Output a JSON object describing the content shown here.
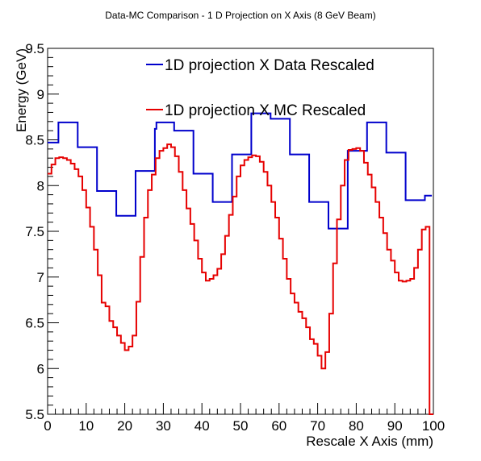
{
  "chart_data": {
    "type": "line",
    "title": "Data-MC Comparison - 1 D Projection on X Axis (8 GeV Beam)",
    "xlabel": "Rescale X Axis (mm)",
    "ylabel": "Energy (GeV)",
    "xlim": [
      0,
      100
    ],
    "ylim": [
      5.5,
      9.5
    ],
    "xticks": [
      "0",
      "10",
      "20",
      "30",
      "40",
      "50",
      "60",
      "70",
      "80",
      "90",
      "100"
    ],
    "yticks": [
      "5.5",
      "6",
      "6.5",
      "7",
      "7.5",
      "8",
      "8.5",
      "9",
      "9.5"
    ],
    "grid": false,
    "legend_position": "top-right",
    "series": [
      {
        "name": "1D projection X Data Rescaled",
        "color": "#0000cc",
        "style": "step",
        "bin_edges": [
          0,
          2.8,
          7.8,
          12.8,
          17.8,
          22.8,
          27.8,
          28.2,
          32.8,
          37.8,
          42.8,
          47.8,
          52.8,
          57.8,
          62.8,
          67.8,
          72.8,
          77.8,
          82.8,
          87.8,
          92.8,
          97.8,
          99.6
        ],
        "values": [
          8.47,
          8.69,
          8.42,
          7.94,
          7.67,
          8.16,
          8.62,
          8.69,
          8.6,
          8.13,
          7.82,
          8.34,
          8.79,
          8.73,
          8.34,
          7.82,
          7.53,
          8.38,
          8.69,
          8.36,
          7.84,
          7.89
        ]
      },
      {
        "name": "1D projection X MC Rescaled",
        "color": "#e60000",
        "style": "step",
        "bin_width": 1,
        "values": [
          8.13,
          8.23,
          8.3,
          8.31,
          8.3,
          8.28,
          8.24,
          8.18,
          8.1,
          7.95,
          7.76,
          7.55,
          7.3,
          7.02,
          6.72,
          6.68,
          6.52,
          6.45,
          6.36,
          6.28,
          6.2,
          6.24,
          6.36,
          6.73,
          7.22,
          7.65,
          7.95,
          8.12,
          8.3,
          8.38,
          8.41,
          8.45,
          8.42,
          8.32,
          8.15,
          7.95,
          7.75,
          7.58,
          7.4,
          7.2,
          7.05,
          6.96,
          6.98,
          7.02,
          7.09,
          7.25,
          7.45,
          7.68,
          7.88,
          8.1,
          8.22,
          8.28,
          8.31,
          8.33,
          8.32,
          8.26,
          8.15,
          8.0,
          7.82,
          7.65,
          7.42,
          7.2,
          6.98,
          6.82,
          6.72,
          6.62,
          6.55,
          6.45,
          6.32,
          6.27,
          6.14,
          6.0,
          6.18,
          6.6,
          7.15,
          7.63,
          8.0,
          8.28,
          8.39,
          8.4,
          8.41,
          8.38,
          8.25,
          8.12,
          7.98,
          7.82,
          7.65,
          7.48,
          7.3,
          7.18,
          7.05,
          6.96,
          6.95,
          6.96,
          6.98,
          7.1,
          7.3,
          7.52,
          7.55,
          5.5
        ]
      }
    ]
  }
}
